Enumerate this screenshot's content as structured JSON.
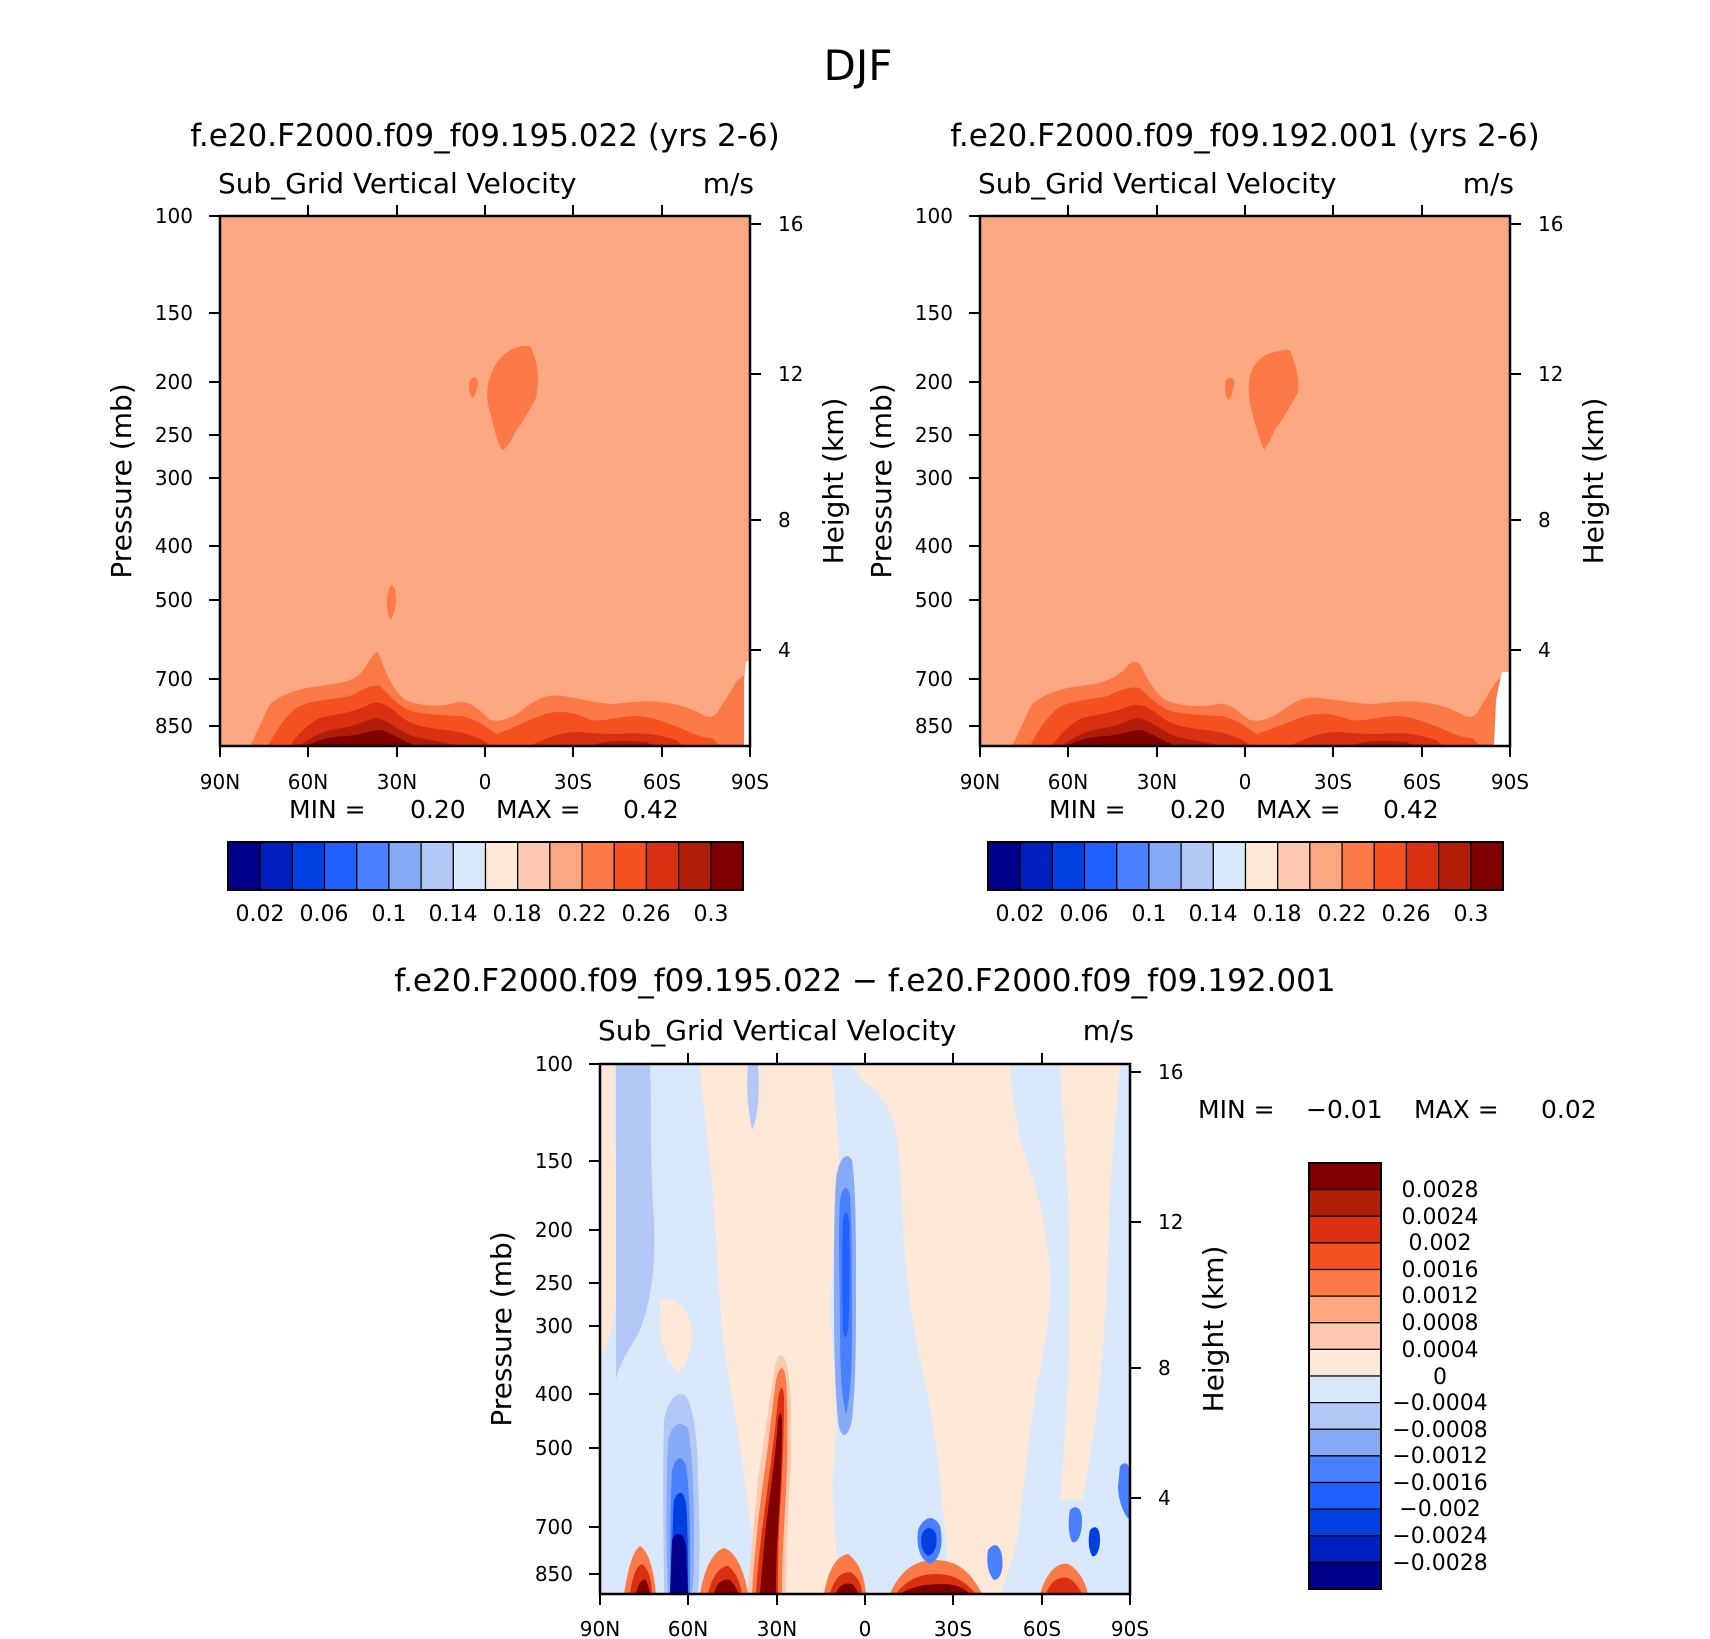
{
  "chart_data": [
    {
      "type": "heatmap",
      "title": "f.e20.F2000.f09_f09.195.022 (yrs 2-6)",
      "variable": "Sub_Grid Vertical Velocity",
      "units": "m/s",
      "ylabel": "Pressure (mb)",
      "ylabel_right": "Height (km)",
      "x_ticks": [
        "90N",
        "60N",
        "30N",
        "0",
        "30S",
        "60S",
        "90S"
      ],
      "y_ticks": [
        100,
        150,
        200,
        250,
        300,
        400,
        500,
        700,
        850
      ],
      "y_ticks_right": [
        16,
        12,
        8,
        4
      ],
      "ylim": [
        850,
        100
      ],
      "y_scale": "log",
      "min_label": "MIN =",
      "min_value": "0.20",
      "max_label": "MAX =",
      "max_value": "0.42",
      "colorbar": {
        "orientation": "horizontal",
        "colors": [
          "#00008b",
          "#0020c0",
          "#0040e0",
          "#2060ff",
          "#4880ff",
          "#86aaf5",
          "#b4c8f8",
          "#d8e8fa",
          "#fde8d8",
          "#fcc8b0",
          "#fba882",
          "#fb7a48",
          "#f45020",
          "#d83010",
          "#b01e0a",
          "#800000"
        ],
        "tick_labels": [
          "0.02",
          "0.06",
          "0.1",
          "0.14",
          "0.18",
          "0.22",
          "0.26",
          "0.3"
        ]
      }
    },
    {
      "type": "heatmap",
      "title": "f.e20.F2000.f09_f09.192.001 (yrs 2-6)",
      "variable": "Sub_Grid Vertical Velocity",
      "units": "m/s",
      "ylabel": "Pressure (mb)",
      "ylabel_right": "Height (km)",
      "x_ticks": [
        "90N",
        "60N",
        "30N",
        "0",
        "30S",
        "60S",
        "90S"
      ],
      "y_ticks": [
        100,
        150,
        200,
        250,
        300,
        400,
        500,
        700,
        850
      ],
      "y_ticks_right": [
        16,
        12,
        8,
        4
      ],
      "ylim": [
        850,
        100
      ],
      "y_scale": "log",
      "min_label": "MIN =",
      "min_value": "0.20",
      "max_label": "MAX =",
      "max_value": "0.42",
      "colorbar": {
        "orientation": "horizontal",
        "colors": [
          "#00008b",
          "#0020c0",
          "#0040e0",
          "#2060ff",
          "#4880ff",
          "#86aaf5",
          "#b4c8f8",
          "#d8e8fa",
          "#fde8d8",
          "#fcc8b0",
          "#fba882",
          "#fb7a48",
          "#f45020",
          "#d83010",
          "#b01e0a",
          "#800000"
        ],
        "tick_labels": [
          "0.02",
          "0.06",
          "0.1",
          "0.14",
          "0.18",
          "0.22",
          "0.26",
          "0.3"
        ]
      }
    },
    {
      "type": "heatmap",
      "title": "f.e20.F2000.f09_f09.195.022 − f.e20.F2000.f09_f09.192.001",
      "variable": "Sub_Grid Vertical Velocity",
      "units": "m/s",
      "ylabel": "Pressure (mb)",
      "ylabel_right": "Height (km)",
      "x_ticks": [
        "90N",
        "60N",
        "30N",
        "0",
        "30S",
        "60S",
        "90S"
      ],
      "y_ticks": [
        100,
        150,
        200,
        250,
        300,
        400,
        500,
        700,
        850
      ],
      "y_ticks_right": [
        16,
        12,
        8,
        4
      ],
      "ylim": [
        850,
        100
      ],
      "y_scale": "log",
      "min_label": "MIN =",
      "min_value": "−0.01",
      "max_label": "MAX =",
      "max_value": "0.02",
      "colorbar": {
        "orientation": "vertical",
        "colors": [
          "#800000",
          "#b01e0a",
          "#d83010",
          "#f45020",
          "#fb7a48",
          "#fba882",
          "#fcc8b0",
          "#fde8d8",
          "#d8e8fa",
          "#b4c8f8",
          "#86aaf5",
          "#4880ff",
          "#2060ff",
          "#0040e0",
          "#0020c0",
          "#00008b"
        ],
        "tick_labels": [
          "0.0028",
          "0.0024",
          "0.002",
          "0.0016",
          "0.0012",
          "0.0008",
          "0.0004",
          "0",
          "−0.0004",
          "−0.0008",
          "−0.0012",
          "−0.0016",
          "−0.002",
          "−0.0024",
          "−0.0028"
        ]
      }
    }
  ],
  "page": {
    "title": "DJF"
  }
}
